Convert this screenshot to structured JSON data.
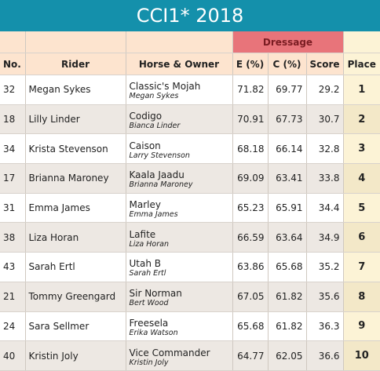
{
  "header": {
    "title": "CCI1* 2018",
    "group": "Dressage"
  },
  "table": {
    "columns": [
      "No.",
      "Rider",
      "Horse & Owner",
      "E (%)",
      "C (%)",
      "Score",
      "Place"
    ],
    "rows": [
      {
        "no": 32,
        "rider": "Megan Sykes",
        "horse": "Classic's Mojah",
        "owner": "Megan Sykes",
        "e": 71.82,
        "c": 69.77,
        "score": 29.2,
        "place": 1
      },
      {
        "no": 18,
        "rider": "Lilly Linder",
        "horse": "Codigo",
        "owner": "Bianca Linder",
        "e": 70.91,
        "c": 67.73,
        "score": 30.7,
        "place": 2
      },
      {
        "no": 34,
        "rider": "Krista Stevenson",
        "horse": "Caison",
        "owner": "Larry Stevenson",
        "e": 68.18,
        "c": 66.14,
        "score": 32.8,
        "place": 3
      },
      {
        "no": 17,
        "rider": "Brianna Maroney",
        "horse": "Kaala Jaadu",
        "owner": "Brianna Maroney",
        "e": 69.09,
        "c": 63.41,
        "score": 33.8,
        "place": 4
      },
      {
        "no": 31,
        "rider": "Emma James",
        "horse": "Marley",
        "owner": "Emma James",
        "e": 65.23,
        "c": 65.91,
        "score": 34.4,
        "place": 5
      },
      {
        "no": 38,
        "rider": "Liza Horan",
        "horse": "Lafite",
        "owner": "Liza Horan",
        "e": 66.59,
        "c": 63.64,
        "score": 34.9,
        "place": 6
      },
      {
        "no": 43,
        "rider": "Sarah Ertl",
        "horse": "Utah B",
        "owner": "Sarah Ertl",
        "e": 63.86,
        "c": 65.68,
        "score": 35.2,
        "place": 7
      },
      {
        "no": 21,
        "rider": "Tommy Greengard",
        "horse": "Sir Norman",
        "owner": "Bert Wood",
        "e": 67.05,
        "c": 61.82,
        "score": 35.6,
        "place": 8
      },
      {
        "no": 24,
        "rider": "Sara Sellmer",
        "horse": "Freesela",
        "owner": "Erika Watson",
        "e": 65.68,
        "c": 61.82,
        "score": 36.3,
        "place": 9
      },
      {
        "no": 40,
        "rider": "Kristin Joly",
        "horse": "Vice Commander",
        "owner": "Kristin Joly",
        "e": 64.77,
        "c": 62.05,
        "score": 36.6,
        "place": 10
      }
    ]
  }
}
